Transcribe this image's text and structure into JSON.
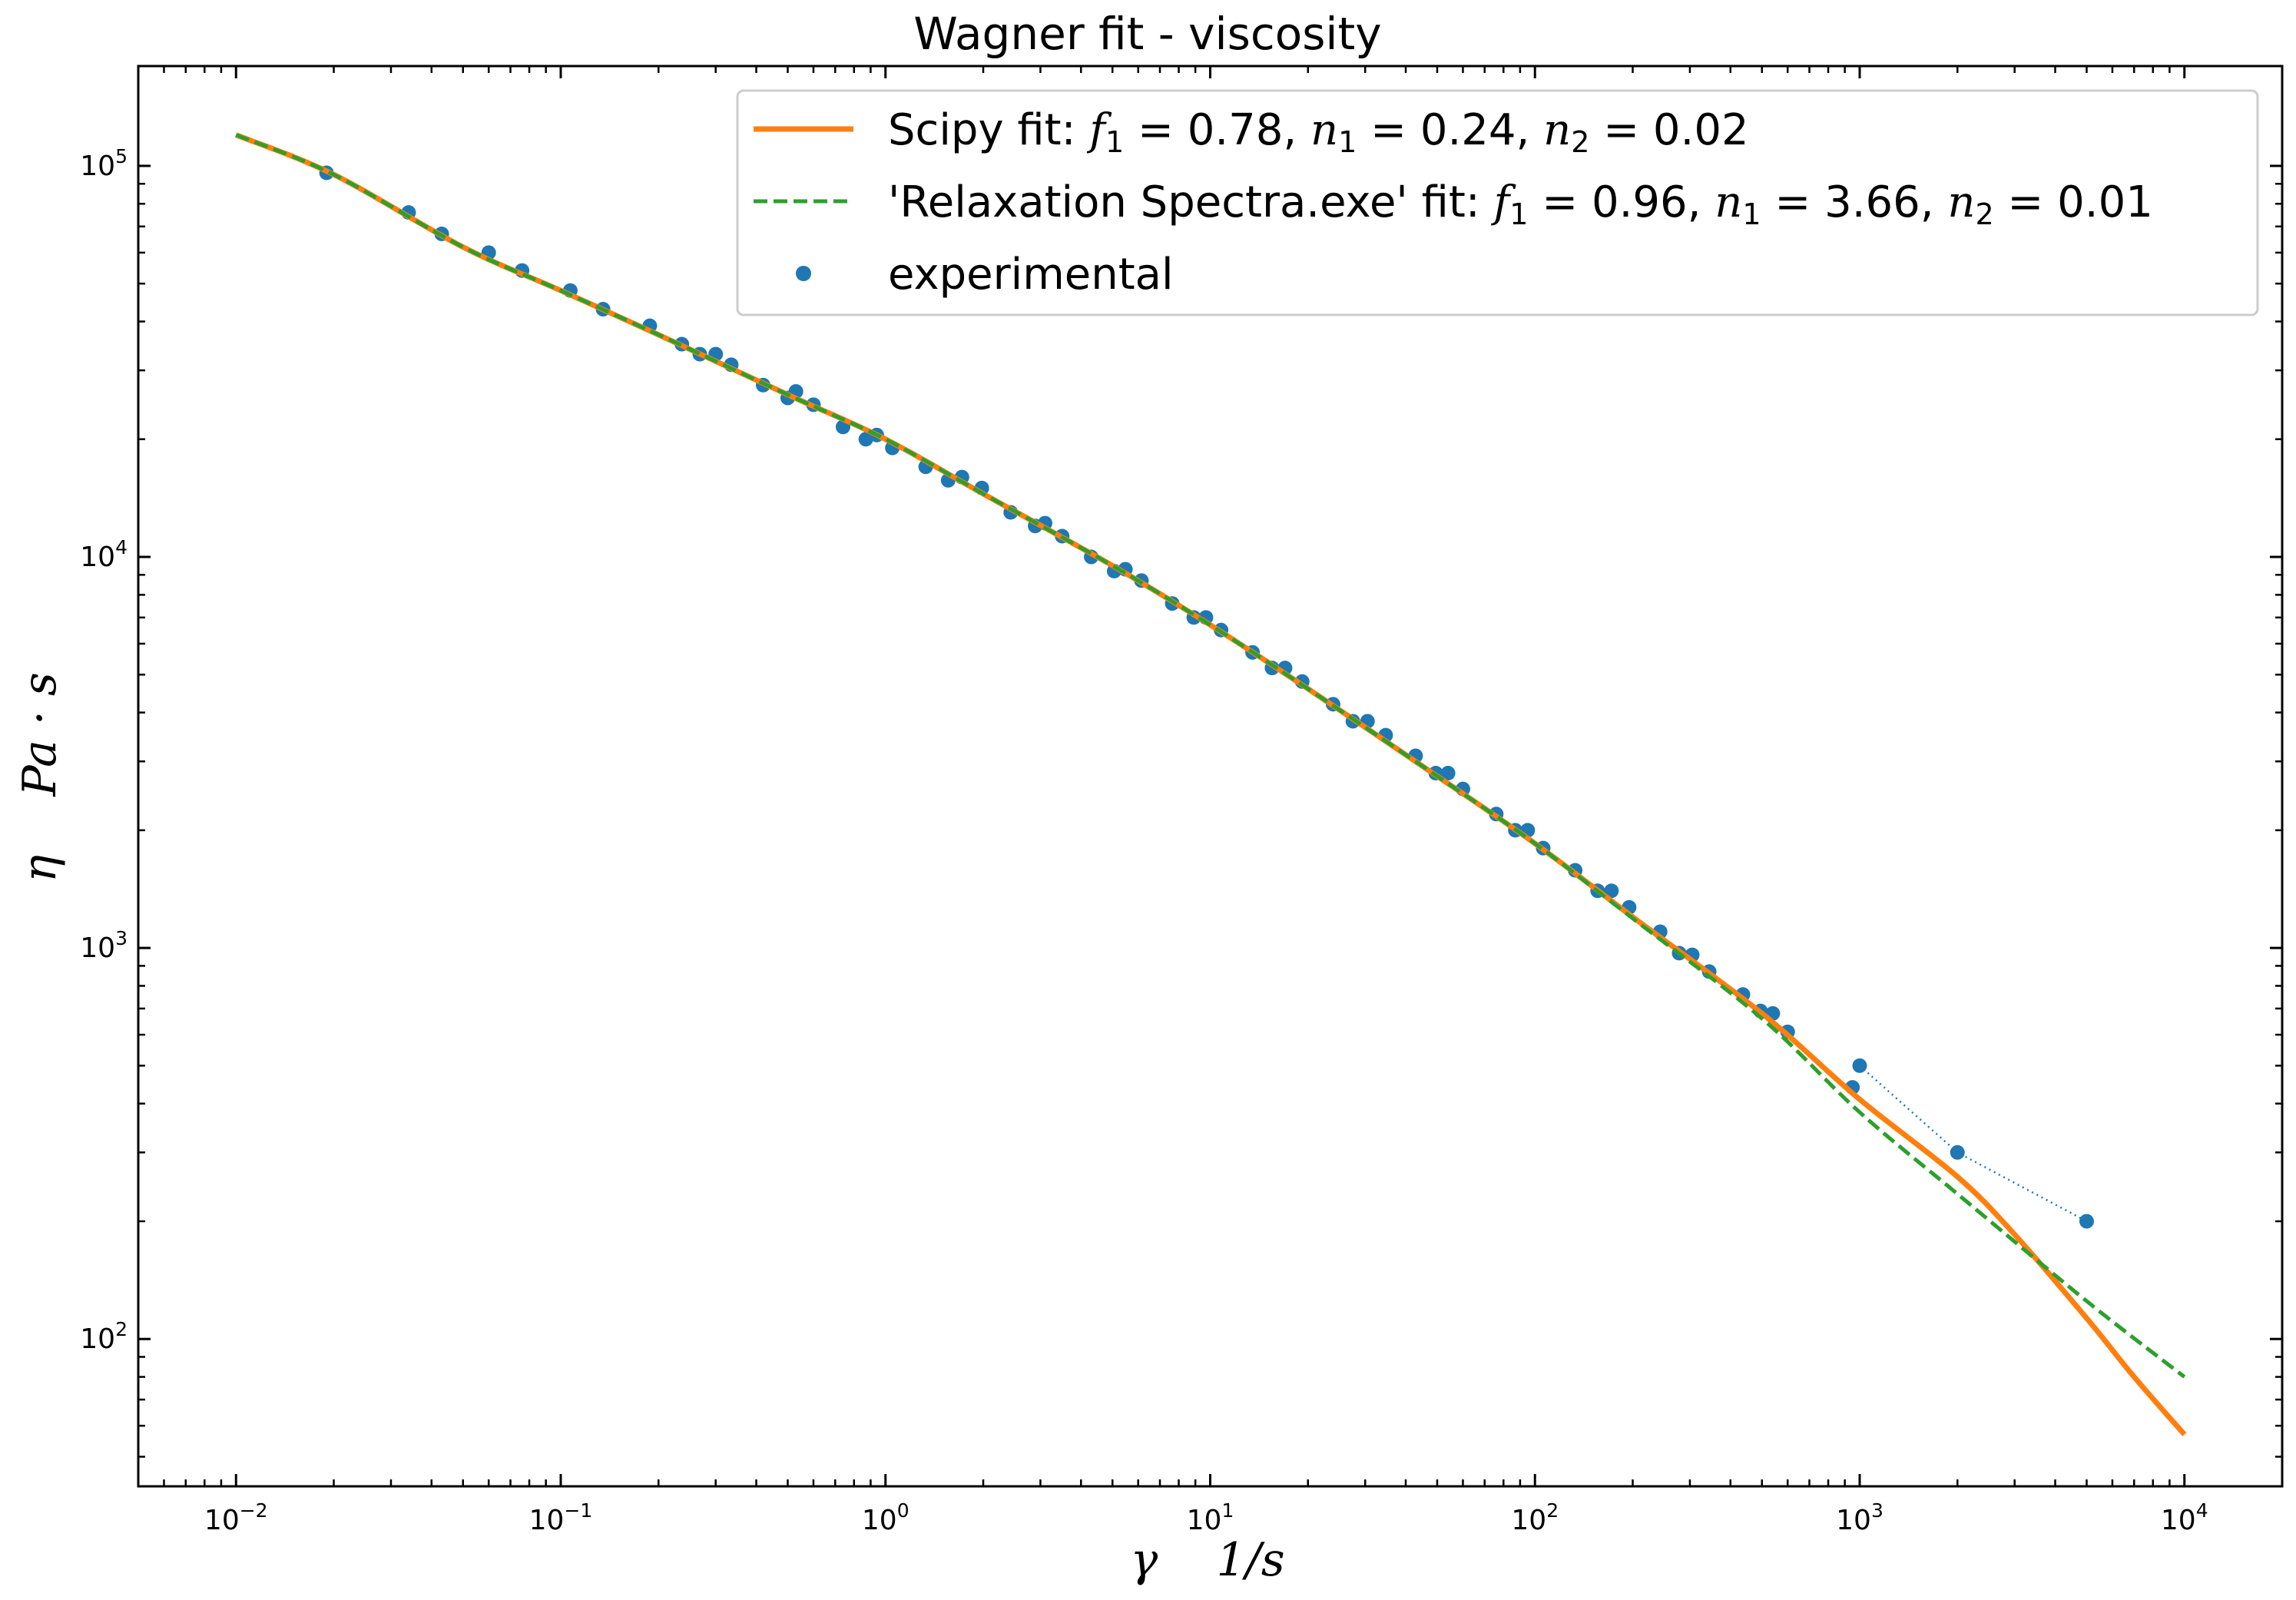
{
  "chart_data": {
    "type": "line",
    "title": "Wagner fit - viscosity",
    "xlabel": "γ    1/s",
    "ylabel": "η    Pa · s",
    "x_scale": "log",
    "y_scale": "log",
    "xlim": [
      0.005,
      20000
    ],
    "ylim": [
      42,
      180000
    ],
    "grid": false,
    "legend_position": "top-right",
    "x_ticks": [
      {
        "value": 0.01,
        "base": "10",
        "exp": "−2"
      },
      {
        "value": 0.1,
        "base": "10",
        "exp": "−1"
      },
      {
        "value": 1,
        "base": "10",
        "exp": "0"
      },
      {
        "value": 10,
        "base": "10",
        "exp": "1"
      },
      {
        "value": 100,
        "base": "10",
        "exp": "2"
      },
      {
        "value": 1000,
        "base": "10",
        "exp": "3"
      },
      {
        "value": 10000,
        "base": "10",
        "exp": "4"
      }
    ],
    "y_ticks": [
      {
        "value": 100,
        "base": "10",
        "exp": "2"
      },
      {
        "value": 1000,
        "base": "10",
        "exp": "3"
      },
      {
        "value": 10000,
        "base": "10",
        "exp": "4"
      },
      {
        "value": 100000,
        "base": "10",
        "exp": "5"
      }
    ],
    "series": [
      {
        "name": "Scipy fit: f1 = 0.78, n1 = 0.24, n2 = 0.02",
        "label_parts": {
          "prefix": "Scipy fit: ",
          "f1": "0.78",
          "n1": "0.24",
          "n2": "0.02"
        },
        "kind": "line",
        "color": "#ff7f0e",
        "style": "solid",
        "points": [
          [
            0.01,
            120000
          ],
          [
            0.02,
            95000
          ],
          [
            0.05,
            62000
          ],
          [
            0.1,
            48000
          ],
          [
            0.2,
            37000
          ],
          [
            0.5,
            26000
          ],
          [
            1,
            20000
          ],
          [
            2,
            14500
          ],
          [
            5,
            9500
          ],
          [
            10,
            6700
          ],
          [
            20,
            4600
          ],
          [
            50,
            2750
          ],
          [
            100,
            1850
          ],
          [
            200,
            1200
          ],
          [
            500,
            680
          ],
          [
            1000,
            410
          ],
          [
            2000,
            260
          ],
          [
            3000,
            185
          ],
          [
            5000,
            113
          ],
          [
            7000,
            80
          ],
          [
            10000,
            57
          ]
        ]
      },
      {
        "name": "'Relaxation Spectra.exe' fit: f1 = 0.96, n1 = 3.66, n2 = 0.01",
        "label_parts": {
          "prefix": "'Relaxation Spectra.exe' fit: ",
          "f1": "0.96",
          "n1": "3.66",
          "n2": "0.01"
        },
        "kind": "line",
        "color": "#2ca02c",
        "style": "dashed",
        "points": [
          [
            0.01,
            120000
          ],
          [
            0.02,
            95000
          ],
          [
            0.05,
            62000
          ],
          [
            0.1,
            48000
          ],
          [
            0.2,
            37000
          ],
          [
            0.5,
            26000
          ],
          [
            1,
            20000
          ],
          [
            2,
            14500
          ],
          [
            5,
            9500
          ],
          [
            10,
            6700
          ],
          [
            20,
            4600
          ],
          [
            50,
            2750
          ],
          [
            100,
            1850
          ],
          [
            200,
            1190
          ],
          [
            500,
            660
          ],
          [
            1000,
            380
          ],
          [
            2000,
            235
          ],
          [
            5000,
            125
          ],
          [
            10000,
            80
          ]
        ]
      },
      {
        "name": "experimental",
        "kind": "scatter",
        "color": "#1f77b4",
        "points": [
          [
            0.019,
            96000
          ],
          [
            0.034,
            76000
          ],
          [
            0.043,
            67000
          ],
          [
            0.06,
            60000
          ],
          [
            0.076,
            54000
          ],
          [
            0.107,
            48000
          ],
          [
            0.135,
            43000
          ],
          [
            0.188,
            39000
          ],
          [
            0.236,
            35000
          ],
          [
            0.268,
            33000
          ],
          [
            0.3,
            33000
          ],
          [
            0.335,
            31000
          ],
          [
            0.42,
            27500
          ],
          [
            0.5,
            25500
          ],
          [
            0.53,
            26500
          ],
          [
            0.6,
            24500
          ],
          [
            0.74,
            21500
          ],
          [
            0.87,
            20000
          ],
          [
            0.94,
            20500
          ],
          [
            1.05,
            19000
          ],
          [
            1.33,
            17000
          ],
          [
            1.56,
            15700
          ],
          [
            1.72,
            16000
          ],
          [
            1.98,
            15000
          ],
          [
            2.43,
            13000
          ],
          [
            2.89,
            12000
          ],
          [
            3.1,
            12200
          ],
          [
            3.5,
            11300
          ],
          [
            4.3,
            10000
          ],
          [
            5.06,
            9200
          ],
          [
            5.48,
            9300
          ],
          [
            6.14,
            8700
          ],
          [
            7.64,
            7600
          ],
          [
            8.9,
            7000
          ],
          [
            9.7,
            7000
          ],
          [
            10.8,
            6500
          ],
          [
            13.5,
            5700
          ],
          [
            15.5,
            5200
          ],
          [
            17,
            5200
          ],
          [
            19.2,
            4800
          ],
          [
            23.9,
            4200
          ],
          [
            27.5,
            3800
          ],
          [
            30.5,
            3800
          ],
          [
            34.7,
            3500
          ],
          [
            42.9,
            3100
          ],
          [
            49.5,
            2800
          ],
          [
            54,
            2800
          ],
          [
            60,
            2550
          ],
          [
            76,
            2200
          ],
          [
            87,
            2000
          ],
          [
            95,
            2000
          ],
          [
            106,
            1800
          ],
          [
            133,
            1580
          ],
          [
            156,
            1400
          ],
          [
            172,
            1400
          ],
          [
            195,
            1270
          ],
          [
            243,
            1100
          ],
          [
            278,
            970
          ],
          [
            305,
            960
          ],
          [
            344,
            870
          ],
          [
            437,
            760
          ],
          [
            495,
            690
          ],
          [
            540,
            680
          ],
          [
            600,
            610
          ],
          [
            950,
            440
          ],
          [
            1000,
            500
          ],
          [
            2000,
            300
          ],
          [
            5000,
            200
          ]
        ]
      }
    ],
    "outlier_connector": {
      "color": "#1f77b4",
      "style": "dotted",
      "points": [
        [
          1000,
          500
        ],
        [
          2000,
          300
        ],
        [
          5000,
          200
        ]
      ]
    }
  }
}
